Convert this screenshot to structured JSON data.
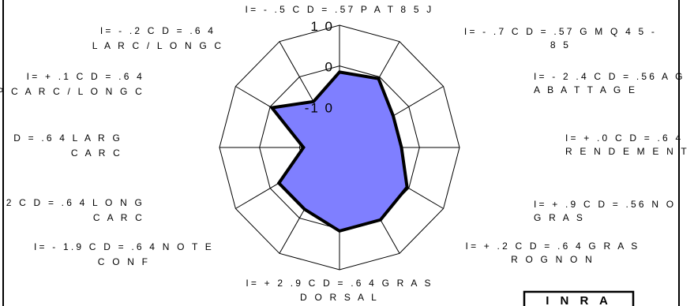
{
  "chart_data": {
    "type": "radar",
    "title": "",
    "r_ticks": [
      {
        "label": "1 0",
        "value": 10
      },
      {
        "label": "0",
        "value": 0
      },
      {
        "label": "-1 0",
        "value": -10
      }
    ],
    "r_range": [
      -20,
      10
    ],
    "grid": true,
    "axes": [
      {
        "label_lines": [
          "I=   - .5  C D = .57  P A T  8 5  J"
        ]
      },
      {
        "label_lines": [
          "I=   - .7  C D = .57  G M Q  4 5 -",
          "8 5"
        ]
      },
      {
        "label_lines": [
          "I=  - 2 .4   C D = .56  A G",
          "A B A T T A G E"
        ]
      },
      {
        "label_lines": [
          "I= +   .0   C D = .6 4",
          "R E N D E M E N T"
        ]
      },
      {
        "label_lines": [
          "I= +   .9   C D = .56  N O",
          "G R A S"
        ]
      },
      {
        "label_lines": [
          "I= +   .2   C D = .6 4  G R A S",
          "R O G N O N"
        ]
      },
      {
        "label_lines": [
          "I= + 2 .9   C D = .6 4   G R A S",
          "D O R S A L"
        ]
      },
      {
        "label_lines": [
          "I=  - 1.9   C D = .6 4  N O T E",
          "C O N F"
        ]
      },
      {
        "label_lines": [
          "2   C D = .6 4  L O N G",
          "C A R C"
        ]
      },
      {
        "label_lines": [
          "D = .6 4  L A R G",
          "C A R C"
        ]
      },
      {
        "label_lines": [
          "I= +   .1  C D = .6 4",
          "P C A R C / L O N G C"
        ]
      },
      {
        "label_lines": [
          "I=   - .2   C D = .6 4",
          "L A R C / L O N G C"
        ]
      }
    ],
    "series": [
      {
        "values": [
          -1.5,
          -0.5,
          -4.5,
          -4.5,
          -0.5,
          0.5,
          0.5,
          -2.5,
          -2.5,
          -11,
          -0.5,
          -7
        ],
        "fill": "#7f7fff",
        "stroke": "#000000"
      }
    ]
  },
  "badge": {
    "text": "I N R A"
  },
  "colors": {
    "grid": "#000000",
    "polygon_fill": "#7f7fff",
    "polygon_stroke": "#000000",
    "background": "#ffffff"
  }
}
